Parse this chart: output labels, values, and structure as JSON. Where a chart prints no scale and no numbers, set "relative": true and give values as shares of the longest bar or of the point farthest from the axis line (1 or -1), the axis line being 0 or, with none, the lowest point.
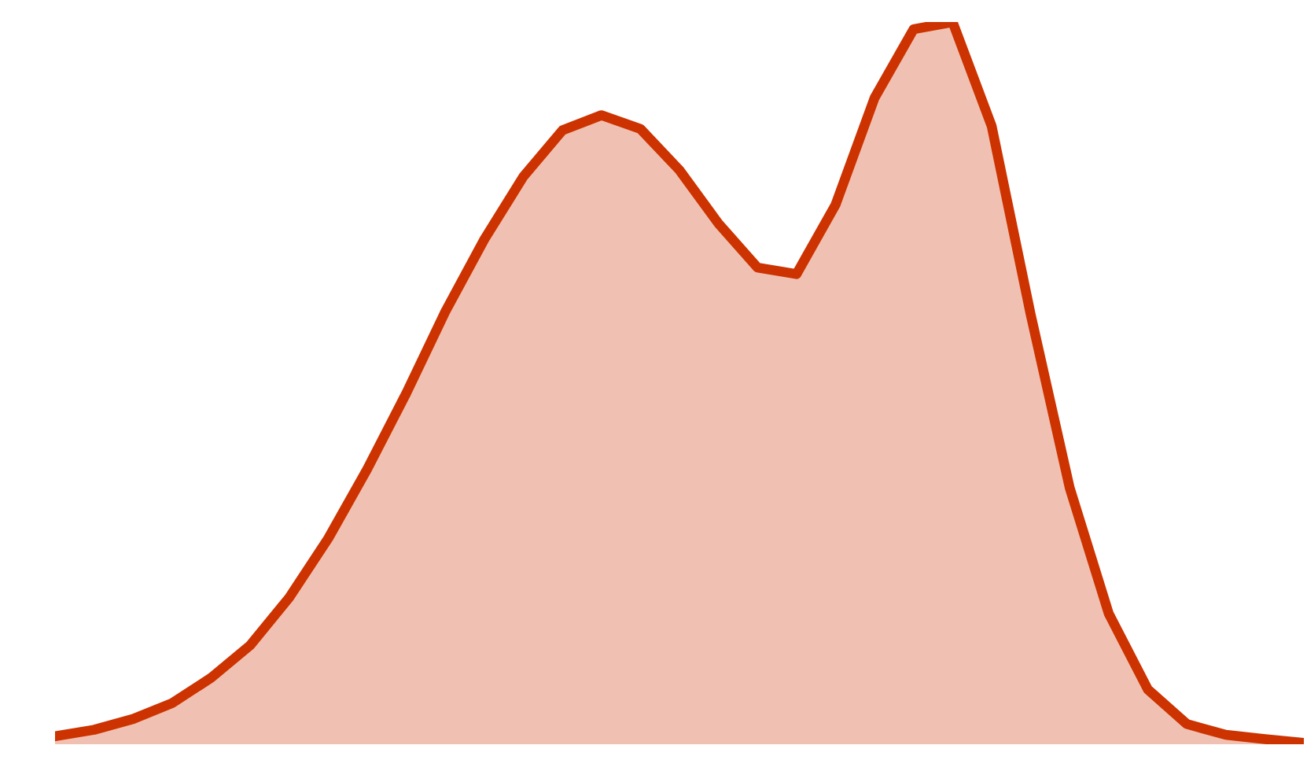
{
  "chart_data": {
    "type": "area",
    "relative": true,
    "categories": [
      null,
      null,
      null,
      null,
      null,
      null,
      null,
      null,
      null,
      null,
      null,
      null,
      null,
      null,
      null,
      null,
      null,
      null,
      null,
      null,
      null,
      null,
      null,
      null,
      null,
      null,
      null,
      null,
      null,
      null,
      null,
      null,
      null
    ],
    "series": [
      {
        "color": "#cc3300",
        "values": [
          0.011,
          0.02,
          0.035,
          0.057,
          0.092,
          0.137,
          0.203,
          0.285,
          0.381,
          0.486,
          0.599,
          0.699,
          0.786,
          0.85,
          0.871,
          0.852,
          0.795,
          0.721,
          0.66,
          0.651,
          0.747,
          0.895,
          0.99,
          1.0,
          0.856,
          0.595,
          0.355,
          0.181,
          0.076,
          0.028,
          0.013,
          0.007,
          0.002
        ]
      }
    ],
    "grid": false,
    "legend": false
  }
}
